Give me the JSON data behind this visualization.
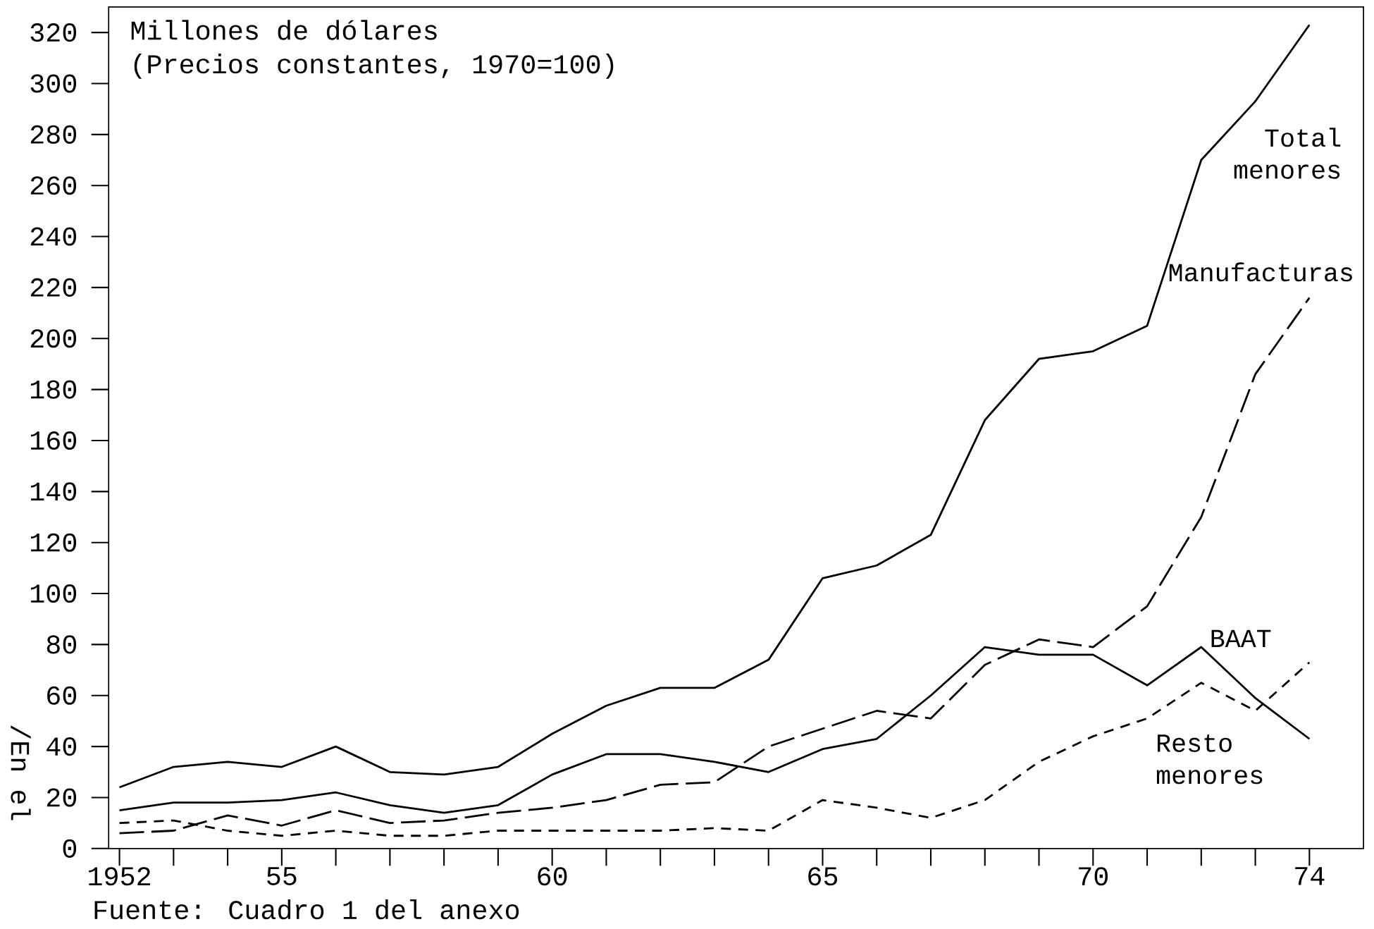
{
  "chart_data": {
    "type": "line",
    "x": [
      1952,
      1953,
      1954,
      1955,
      1956,
      1957,
      1958,
      1959,
      1960,
      1961,
      1962,
      1963,
      1964,
      1965,
      1966,
      1967,
      1968,
      1969,
      1970,
      1971,
      1972,
      1973,
      1974
    ],
    "series": [
      {
        "name": "Total menores",
        "color": "#000000",
        "line_style": "solid",
        "values": [
          24,
          32,
          34,
          32,
          40,
          30,
          29,
          32,
          45,
          56,
          63,
          63,
          74,
          106,
          111,
          123,
          168,
          192,
          195,
          205,
          270,
          293,
          323
        ]
      },
      {
        "name": "Manufacturas",
        "color": "#000000",
        "line_style": "dashed",
        "values": [
          6,
          7,
          13,
          9,
          15,
          10,
          11,
          14,
          16,
          19,
          25,
          26,
          40,
          47,
          54,
          51,
          72,
          82,
          79,
          95,
          130,
          186,
          216
        ]
      },
      {
        "name": "BAAT",
        "color": "#000000",
        "line_style": "solid",
        "values": [
          15,
          18,
          18,
          19,
          22,
          17,
          14,
          17,
          29,
          37,
          37,
          34,
          30,
          39,
          43,
          60,
          79,
          76,
          76,
          64,
          79,
          59,
          43
        ]
      },
      {
        "name": "Resto menores",
        "color": "#000000",
        "line_style": "dashed",
        "values": [
          10,
          11,
          7,
          5,
          7,
          5,
          5,
          7,
          7,
          7,
          7,
          8,
          7,
          19,
          16,
          12,
          19,
          34,
          44,
          51,
          65,
          54,
          73
        ]
      }
    ],
    "xlim": [
      1951.8,
      1975
    ],
    "ylim": [
      0,
      330
    ],
    "xticks": [
      {
        "value": 1952,
        "label": "1952"
      },
      {
        "value": 1955,
        "label": "55"
      },
      {
        "value": 1960,
        "label": "60"
      },
      {
        "value": 1965,
        "label": "65"
      },
      {
        "value": 1970,
        "label": "70"
      },
      {
        "value": 1974,
        "label": "74"
      }
    ],
    "yticks": [
      0,
      20,
      40,
      60,
      80,
      100,
      120,
      140,
      160,
      180,
      200,
      220,
      240,
      260,
      280,
      300,
      320
    ],
    "annotations": [
      "Millones de dólares",
      "(Precios constantes, 1970=100)",
      "Fuente: Cuadro 1 del anexo",
      "/En el"
    ],
    "grid": false,
    "marker": "none"
  }
}
